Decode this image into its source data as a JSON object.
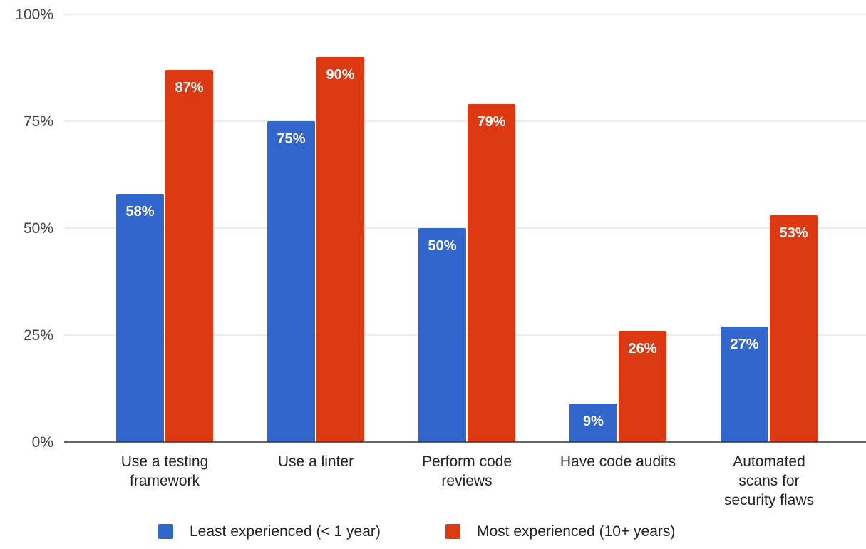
{
  "chart_data": {
    "type": "bar",
    "title": "",
    "xlabel": "",
    "ylabel": "",
    "ylim": [
      0,
      100
    ],
    "y_ticks": [
      0,
      25,
      50,
      75,
      100
    ],
    "y_tick_labels": [
      "0%",
      "25%",
      "50%",
      "75%",
      "100%"
    ],
    "grid": true,
    "legend_position": "bottom",
    "categories": [
      [
        "Use a testing",
        "framework"
      ],
      [
        "Use a linter"
      ],
      [
        "Perform code",
        "reviews"
      ],
      [
        "Have code audits"
      ],
      [
        "Automated",
        "scans for",
        "security flaws"
      ]
    ],
    "series": [
      {
        "name": "Least experienced (< 1 year)",
        "color": "#3366cc",
        "values": [
          58,
          75,
          50,
          9,
          27
        ],
        "labels": [
          "58%",
          "75%",
          "50%",
          "9%",
          "27%"
        ]
      },
      {
        "name": "Most experienced (10+ years)",
        "color": "#dc3912",
        "values": [
          87,
          90,
          79,
          26,
          53
        ],
        "labels": [
          "87%",
          "90%",
          "79%",
          "26%",
          "53%"
        ]
      }
    ]
  }
}
